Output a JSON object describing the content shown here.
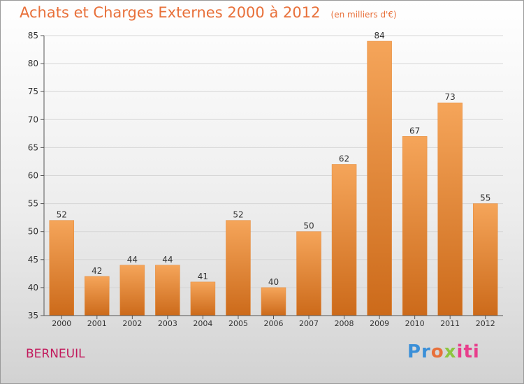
{
  "header": {
    "title": "Achats et Charges Externes 2000 à 2012",
    "unit": "(en milliers d'€)"
  },
  "footer": {
    "location": "BERNEUIL",
    "logo_text": [
      "Pr",
      "o",
      "x",
      "iti"
    ]
  },
  "colors": {
    "title": "#e8703a",
    "location": "#c2185b",
    "bar_top": "#f5a55a",
    "bar_bottom": "#cc6a1a"
  },
  "chart_data": {
    "type": "bar",
    "categories": [
      "2000",
      "2001",
      "2002",
      "2003",
      "2004",
      "2005",
      "2006",
      "2007",
      "2008",
      "2009",
      "2010",
      "2011",
      "2012"
    ],
    "values": [
      52,
      42,
      44,
      44,
      41,
      52,
      40,
      50,
      62,
      84,
      67,
      73,
      55
    ],
    "ylim": [
      35,
      85
    ],
    "yticks": [
      35,
      40,
      45,
      50,
      55,
      60,
      65,
      70,
      75,
      80,
      85
    ],
    "grid": true
  }
}
